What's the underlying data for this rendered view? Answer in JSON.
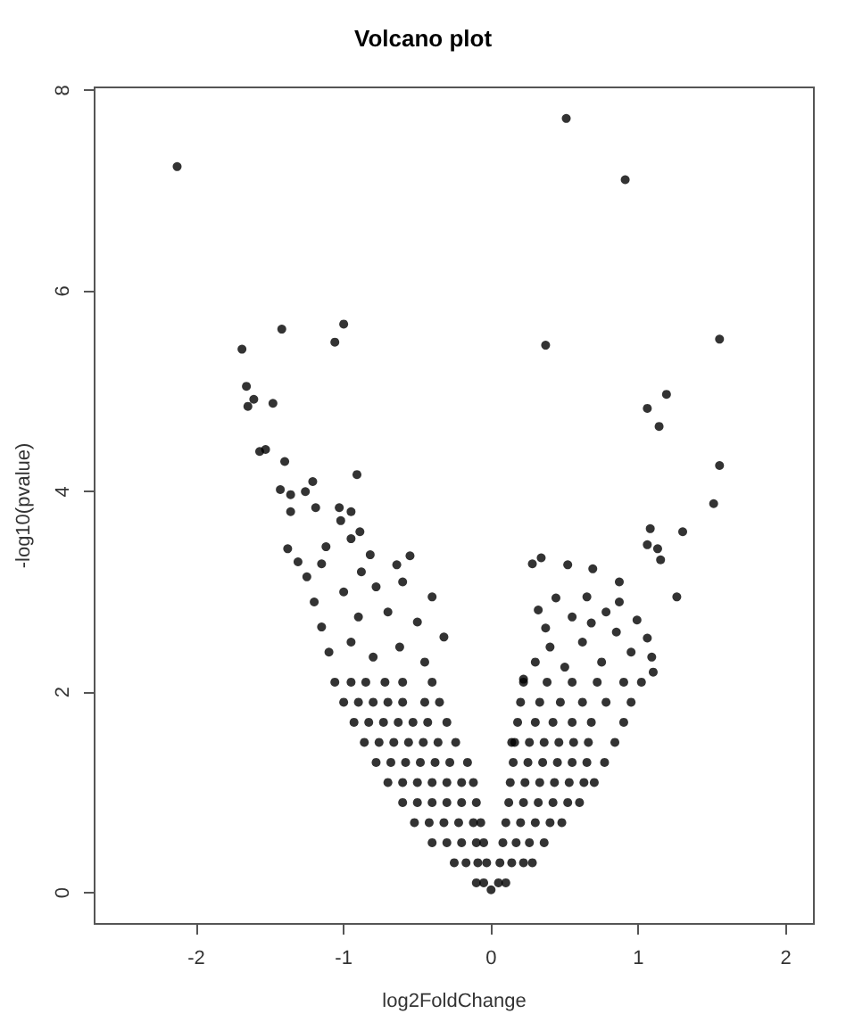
{
  "chart_data": {
    "type": "scatter",
    "title": "Volcano plot",
    "xlabel": "log2FoldChange",
    "ylabel": "-log10(pvalue)",
    "color": "#000000",
    "marker": "circle",
    "grid": false,
    "xlim": [
      -2.69,
      2.19
    ],
    "ylim": [
      -0.31,
      8.03
    ],
    "xticks": [
      -2,
      -1,
      0,
      1,
      2
    ],
    "yticks": [
      0,
      2,
      4,
      6,
      8
    ],
    "x": [
      -2.13,
      -1.42,
      -1.0,
      -1.06,
      -1.69,
      -1.66,
      -1.61,
      -1.65,
      -1.48,
      -1.57,
      -1.53,
      -1.4,
      -0.91,
      -1.21,
      -1.43,
      -1.36,
      -1.26,
      -1.36,
      -1.19,
      -1.03,
      -1.02,
      -0.95,
      -0.89,
      -0.95,
      -1.38,
      -1.12,
      -1.31,
      -1.15,
      -0.82,
      -0.55,
      -0.64,
      0.51,
      0.91,
      0.37,
      1.55,
      1.19,
      1.06,
      1.14,
      1.55,
      1.51,
      1.3,
      1.08,
      1.06,
      1.13,
      1.15,
      0.28,
      0.34,
      0.52,
      0.69,
      1.26,
      0.87,
      0.65,
      0.44,
      0.32,
      0.37,
      0.87,
      0.99,
      0.68,
      1.06,
      1.09,
      0.22,
      0.14,
      -1.1,
      -0.95,
      -0.8,
      -0.62,
      -0.45,
      -0.32,
      -1.15,
      -0.9,
      -0.7,
      -0.5,
      -1.2,
      -1.0,
      -0.78,
      -0.6,
      -0.4,
      -1.25,
      -0.88,
      0.3,
      0.5,
      0.75,
      0.95,
      0.4,
      0.62,
      0.85,
      1.1,
      0.55,
      0.78,
      0.0,
      -0.1,
      -0.05,
      -0.25,
      -0.17,
      -0.09,
      -0.03,
      -0.4,
      -0.3,
      -0.2,
      -0.1,
      -0.05,
      -0.52,
      -0.42,
      -0.32,
      -0.22,
      -0.12,
      -0.07,
      -0.6,
      -0.5,
      -0.4,
      -0.3,
      -0.2,
      -0.1,
      -0.7,
      -0.6,
      -0.5,
      -0.4,
      -0.3,
      -0.2,
      -0.12,
      -0.78,
      -0.68,
      -0.58,
      -0.48,
      -0.38,
      -0.28,
      -0.16,
      -0.86,
      -0.76,
      -0.66,
      -0.56,
      -0.46,
      -0.36,
      -0.24,
      -0.93,
      -0.83,
      -0.73,
      -0.63,
      -0.53,
      -0.43,
      -0.3,
      -1.0,
      -0.9,
      -0.8,
      -0.7,
      -0.6,
      -0.45,
      -0.35,
      -1.06,
      -0.95,
      -0.85,
      -0.72,
      -0.6,
      -0.4,
      0.05,
      0.1,
      0.06,
      0.14,
      0.22,
      0.28,
      0.08,
      0.17,
      0.26,
      0.36,
      0.1,
      0.2,
      0.3,
      0.4,
      0.48,
      0.12,
      0.22,
      0.32,
      0.42,
      0.52,
      0.6,
      0.13,
      0.23,
      0.33,
      0.43,
      0.53,
      0.63,
      0.7,
      0.15,
      0.25,
      0.35,
      0.45,
      0.55,
      0.65,
      0.77,
      0.16,
      0.26,
      0.36,
      0.46,
      0.56,
      0.66,
      0.84,
      0.18,
      0.3,
      0.42,
      0.55,
      0.68,
      0.9,
      0.2,
      0.33,
      0.47,
      0.62,
      0.78,
      0.95,
      0.22,
      0.38,
      0.55,
      0.72,
      0.9,
      1.02
    ],
    "values": [
      7.24,
      5.62,
      5.67,
      5.49,
      5.42,
      5.05,
      4.92,
      4.85,
      4.88,
      4.4,
      4.42,
      4.3,
      4.17,
      4.1,
      4.02,
      3.97,
      4.0,
      3.8,
      3.84,
      3.84,
      3.71,
      3.8,
      3.6,
      3.53,
      3.43,
      3.45,
      3.3,
      3.28,
      3.37,
      3.36,
      3.27,
      7.72,
      7.11,
      5.46,
      5.52,
      4.97,
      4.83,
      4.65,
      4.26,
      3.88,
      3.6,
      3.63,
      3.47,
      3.43,
      3.32,
      3.28,
      3.34,
      3.27,
      3.23,
      2.95,
      3.1,
      2.95,
      2.94,
      2.82,
      2.64,
      2.9,
      2.72,
      2.69,
      2.54,
      2.35,
      2.13,
      1.5,
      2.4,
      2.5,
      2.35,
      2.45,
      2.3,
      2.55,
      2.65,
      2.75,
      2.8,
      2.7,
      2.9,
      3.0,
      3.05,
      3.1,
      2.95,
      3.15,
      3.2,
      2.3,
      2.25,
      2.3,
      2.4,
      2.45,
      2.5,
      2.6,
      2.2,
      2.75,
      2.8,
      0.03,
      0.1,
      0.1,
      0.3,
      0.3,
      0.3,
      0.3,
      0.5,
      0.5,
      0.5,
      0.5,
      0.5,
      0.7,
      0.7,
      0.7,
      0.7,
      0.7,
      0.7,
      0.9,
      0.9,
      0.9,
      0.9,
      0.9,
      0.9,
      1.1,
      1.1,
      1.1,
      1.1,
      1.1,
      1.1,
      1.1,
      1.3,
      1.3,
      1.3,
      1.3,
      1.3,
      1.3,
      1.3,
      1.5,
      1.5,
      1.5,
      1.5,
      1.5,
      1.5,
      1.5,
      1.7,
      1.7,
      1.7,
      1.7,
      1.7,
      1.7,
      1.7,
      1.9,
      1.9,
      1.9,
      1.9,
      1.9,
      1.9,
      1.9,
      2.1,
      2.1,
      2.1,
      2.1,
      2.1,
      2.1,
      0.1,
      0.1,
      0.3,
      0.3,
      0.3,
      0.3,
      0.5,
      0.5,
      0.5,
      0.5,
      0.7,
      0.7,
      0.7,
      0.7,
      0.7,
      0.9,
      0.9,
      0.9,
      0.9,
      0.9,
      0.9,
      1.1,
      1.1,
      1.1,
      1.1,
      1.1,
      1.1,
      1.1,
      1.3,
      1.3,
      1.3,
      1.3,
      1.3,
      1.3,
      1.3,
      1.5,
      1.5,
      1.5,
      1.5,
      1.5,
      1.5,
      1.5,
      1.7,
      1.7,
      1.7,
      1.7,
      1.7,
      1.7,
      1.9,
      1.9,
      1.9,
      1.9,
      1.9,
      1.9,
      2.1,
      2.1,
      2.1,
      2.1,
      2.1,
      2.1
    ]
  }
}
